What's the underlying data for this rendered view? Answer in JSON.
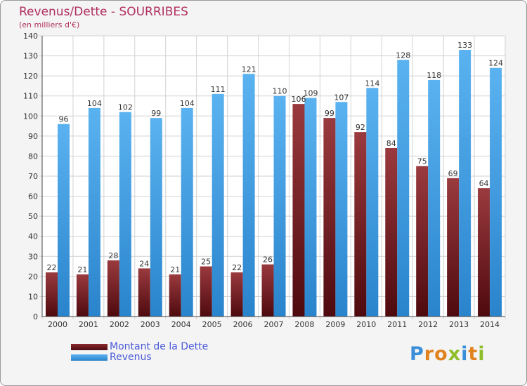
{
  "title": "Revenus/Dette - SOURRIBES",
  "subtitle": "(en milliers d'€)",
  "logo": {
    "letters": [
      "P",
      "r",
      "o",
      "x",
      "i",
      "t",
      "i"
    ],
    "colors": [
      "#3a8fd8",
      "#e0821e",
      "#e0821e",
      "#8fbe2a",
      "#3a8fd8",
      "#e0821e",
      "#8fbe2a"
    ]
  },
  "legend": [
    {
      "label": "Montant de la Dette",
      "color": "#7a1e22"
    },
    {
      "label": "Revenus",
      "color": "#3aa0e8"
    }
  ],
  "chart_data": {
    "type": "bar",
    "categories": [
      "2000",
      "2001",
      "2002",
      "2003",
      "2004",
      "2005",
      "2006",
      "2007",
      "2008",
      "2009",
      "2010",
      "2011",
      "2012",
      "2013",
      "2014"
    ],
    "series": [
      {
        "name": "Montant de la Dette",
        "color": "#7a1e22",
        "values": [
          22,
          21,
          28,
          24,
          21,
          25,
          22,
          26,
          106,
          99,
          92,
          84,
          75,
          69,
          64
        ]
      },
      {
        "name": "Revenus",
        "color": "#3aa0e8",
        "values": [
          96,
          104,
          102,
          99,
          104,
          111,
          121,
          110,
          109,
          107,
          114,
          128,
          118,
          133,
          124
        ]
      }
    ],
    "yticks": [
      0,
      10,
      20,
      30,
      40,
      50,
      60,
      70,
      80,
      90,
      100,
      110,
      120,
      130,
      140
    ],
    "ylim": [
      0,
      140
    ],
    "grid": true,
    "legend_position": "bottom-left"
  }
}
